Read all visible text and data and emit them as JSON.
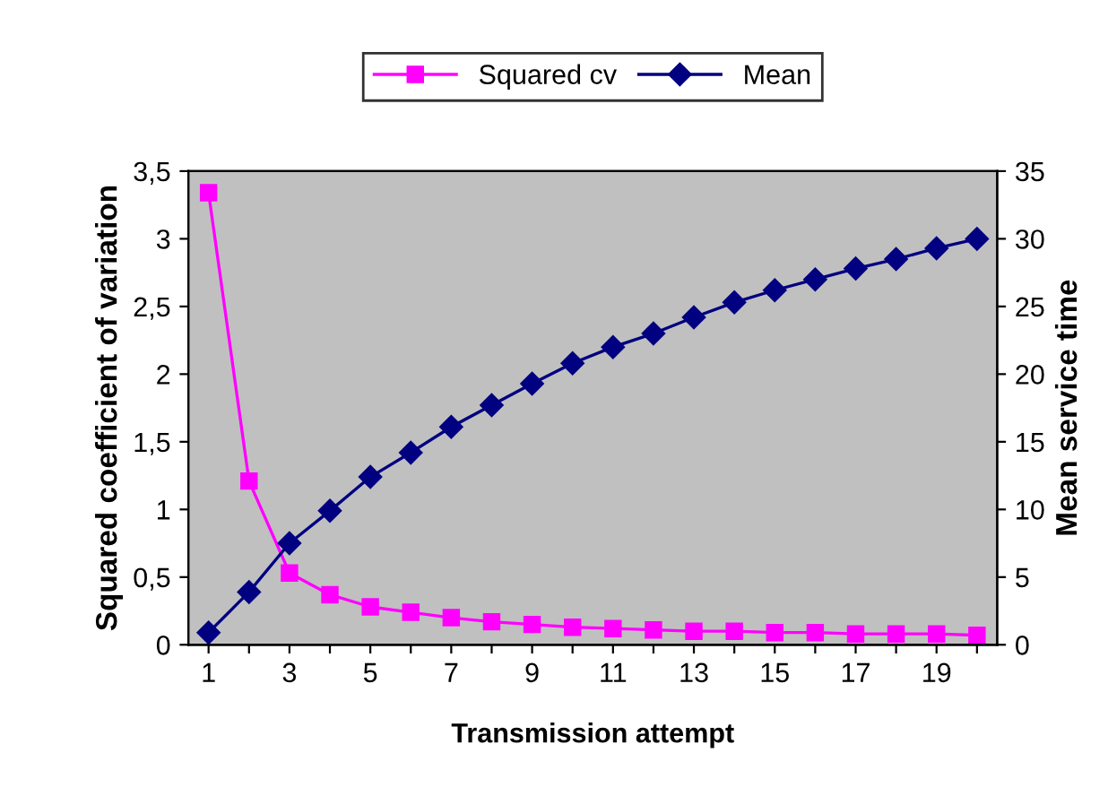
{
  "chart_data": {
    "type": "line",
    "xlabel": "Transmission attempt",
    "ylabel": "Squared coefficient of variation",
    "y2label": "Mean service time",
    "categories": [
      "1",
      null,
      "3",
      null,
      "5",
      null,
      "7",
      null,
      "9",
      null,
      "11",
      null,
      "13",
      null,
      "15",
      null,
      "17",
      null,
      "19",
      null
    ],
    "series": [
      {
        "name": "Squared cv",
        "color": "#ff00ff",
        "marker": "square",
        "values": [
          3.34,
          1.21,
          0.53,
          0.37,
          0.28,
          0.24,
          0.2,
          0.17,
          0.15,
          0.13,
          0.12,
          0.11,
          0.1,
          0.1,
          0.09,
          0.09,
          0.08,
          0.08,
          0.08,
          0.07
        ]
      },
      {
        "name": "Mean",
        "color": "#000080",
        "marker": "diamond",
        "axis": "y2",
        "values": [
          0.9,
          3.9,
          7.5,
          9.9,
          12.4,
          14.2,
          16.1,
          17.7,
          19.3,
          20.8,
          22,
          23,
          24.2,
          25.3,
          26.2,
          27,
          27.8,
          28.5,
          29.3,
          30
        ]
      }
    ],
    "ylim": [
      0,
      3.5
    ],
    "yticks": [
      0,
      {
        "value": 0.5,
        "label": "0,5"
      },
      1,
      {
        "value": 1.5,
        "label": "1,5"
      },
      2,
      {
        "value": 2.5,
        "label": "2,5"
      },
      3,
      {
        "value": 3.5,
        "label": "3,5"
      }
    ],
    "y2lim": [
      0,
      35
    ],
    "y2ticks": [
      0,
      5,
      10,
      15,
      20,
      25,
      30,
      35
    ],
    "legend": "top",
    "grid": false
  }
}
